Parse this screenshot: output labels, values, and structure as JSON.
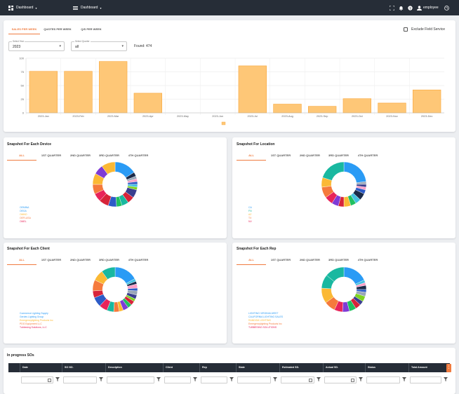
{
  "topbar": {
    "nav1": "Dashboard",
    "nav2": "Dashboard",
    "user": "employee"
  },
  "sales": {
    "tabs": [
      "SALES PER WEEK",
      "QUOTES PER WEEK",
      "Q/S PER WEEK"
    ],
    "active_tab": 0,
    "checkbox_label": "Exclude Field Service",
    "select_year_label": "Select Year",
    "select_year_value": "2023",
    "select_quarter_label": "Select Quarter",
    "select_quarter_value": "all",
    "found_text": "Found: 474"
  },
  "chart_data": {
    "type": "bar",
    "categories": [
      "2023-Jan",
      "2023-Feb",
      "2023-Mar",
      "2023-Apr",
      "2023-May",
      "2023-Jun",
      "2023-Jul",
      "2023-Aug",
      "2023-Sep",
      "2023-Oct",
      "2023-Nov",
      "2023-Dec"
    ],
    "values": [
      76,
      76,
      94,
      36,
      0,
      0,
      86,
      16,
      12,
      26,
      18,
      42
    ],
    "ylim": [
      0,
      100
    ],
    "yticks": [
      0,
      25,
      50,
      75,
      100
    ],
    "grid": true,
    "bar_color": "#fec777",
    "bar_border": "#f9a83c",
    "legend_label": "",
    "legend": "bottom-center"
  },
  "snapshot_tabs": [
    "ALL",
    "1ST QUARTER",
    "2ND QUARTER",
    "3RD QUARTER",
    "4TH QUARTER"
  ],
  "device": {
    "title": "Snapshot For Each Device",
    "legend": [
      "OEMINA",
      "OEGA",
      "OMNO",
      "OEFLUSA",
      "OMEL"
    ],
    "legend_colors": [
      "#2a9bf5",
      "#2a9bf5",
      "#fbb935",
      "#f57a3c",
      "#e8245a"
    ]
  },
  "location": {
    "title": "Snapshot For Location",
    "legend": [
      "CA",
      "FN",
      "AZ",
      "TX",
      "NV"
    ],
    "legend_colors": [
      "#2a9bf5",
      "#19b8a0",
      "#fbb935",
      "#f57a3c",
      "#e8245a"
    ]
  },
  "client": {
    "title": "Snapshot For Each Client",
    "legend": [
      "Commerce Lighting Supply",
      "Gerdes Lighting Group",
      "Emergencylighting Products Inc",
      "PDG Equipment LLC",
      "Tubbesing Solutions, LLC"
    ],
    "legend_colors": [
      "#2a9bf5",
      "#2a9bf5",
      "#fbb935",
      "#f57a3c",
      "#e8245a"
    ]
  },
  "rep": {
    "title": "Snapshot For Each Rep",
    "legend": [
      "LIGHTING VIRGINIA WEST",
      "CALIFORNIA LIGHTING SALES",
      "RANDOM LIGHTING",
      "Emergencylighting Products Inc",
      "TUBBESING SOLUTIONS"
    ],
    "legend_colors": [
      "#2a9bf5",
      "#2a9bf5",
      "#fbb935",
      "#f57a3c",
      "#e8245a"
    ]
  },
  "donut_colors": [
    "#2a9bf5",
    "#19b8a0",
    "#fbb935",
    "#f57a3c",
    "#e8245a",
    "#7e3bd6",
    "#2c5bc7",
    "#20c060",
    "#d7243a",
    "#7ed321",
    "#9aa7b8",
    "#1b2b4a",
    "#ff9ec7",
    "#45c1e0",
    "#3a3f8f"
  ],
  "table": {
    "title": "In progress SOs",
    "columns": [
      "Date",
      "SO NO.",
      "Description",
      "Client",
      "Rep",
      "State",
      "Estimated SD.",
      "Actual SD.",
      "Status",
      "Total Amount"
    ]
  }
}
